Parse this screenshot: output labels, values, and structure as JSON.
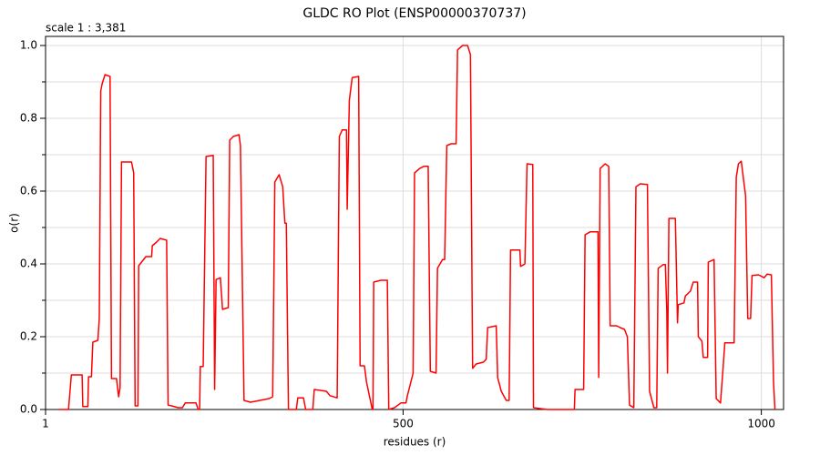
{
  "chart_data": {
    "type": "line",
    "title": "GLDC RO Plot (ENSP00000370737)",
    "annotation": "scale 1 : 3,381",
    "xlabel": "residues (r)",
    "ylabel": "o(r)",
    "color": "#ff0000",
    "grid": true,
    "xlim": [
      1,
      1031
    ],
    "ylim": [
      0,
      1.025
    ],
    "xticks": [
      1,
      500,
      1000
    ],
    "yticks": [
      {
        "value": 0,
        "label": "0.0"
      },
      0.2,
      0.4,
      0.6,
      0.8,
      {
        "value": 1,
        "label": "1.0"
      }
    ],
    "yminor": [
      0.1,
      0.3,
      0.5,
      0.7,
      0.9
    ],
    "x": [
      20,
      33,
      37,
      52,
      53,
      60,
      61,
      65,
      67,
      74,
      76,
      78,
      80,
      84,
      91,
      93,
      100,
      103,
      105,
      107,
      121,
      124,
      126,
      130,
      131,
      137,
      141,
      149,
      150,
      156,
      161,
      170,
      172,
      177,
      186,
      192,
      196,
      211,
      214,
      216,
      217,
      221,
      225,
      235,
      237,
      239,
      245,
      248,
      256,
      258,
      263,
      271,
      273,
      278,
      287,
      300,
      313,
      318,
      321,
      327,
      332,
      335,
      337,
      340,
      351,
      353,
      361,
      364,
      374,
      376,
      393,
      398,
      408,
      411,
      415,
      421,
      422,
      425,
      429,
      438,
      440,
      446,
      449,
      457,
      458,
      459,
      469,
      478,
      480,
      488,
      497,
      504,
      506,
      514,
      516,
      523,
      529,
      535,
      538,
      546,
      548,
      555,
      558,
      561,
      567,
      574,
      576,
      583,
      590,
      594,
      597,
      602,
      612,
      616,
      618,
      630,
      632,
      637,
      644,
      648,
      650,
      663,
      664,
      670,
      673,
      681,
      682,
      701,
      720,
      739,
      740,
      752,
      754,
      761,
      772,
      773,
      775,
      782,
      787,
      789,
      798,
      803,
      809,
      813,
      816,
      822,
      825,
      831,
      841,
      844,
      850,
      854,
      856,
      863,
      866,
      868,
      869,
      871,
      880,
      883,
      884,
      892,
      894,
      901,
      905,
      911,
      912,
      917,
      919,
      925,
      926,
      934,
      937,
      943,
      947,
      949,
      962,
      965,
      968,
      972,
      976,
      978,
      981,
      985,
      987,
      996,
      1004,
      1008,
      1014,
      1017,
      1019
    ],
    "values": [
      0,
      0,
      0.095,
      0.095,
      0.008,
      0.008,
      0.09,
      0.09,
      0.185,
      0.19,
      0.25,
      0.875,
      0.895,
      0.92,
      0.915,
      0.085,
      0.085,
      0.035,
      0.06,
      0.68,
      0.68,
      0.65,
      0.01,
      0.01,
      0.395,
      0.41,
      0.42,
      0.42,
      0.45,
      0.46,
      0.47,
      0.465,
      0.012,
      0.01,
      0.005,
      0.005,
      0.018,
      0.018,
      0,
      0,
      0.118,
      0.118,
      0.695,
      0.698,
      0.055,
      0.357,
      0.362,
      0.275,
      0.28,
      0.74,
      0.75,
      0.755,
      0.725,
      0.025,
      0.02,
      0.025,
      0.03,
      0.035,
      0.625,
      0.645,
      0.612,
      0.512,
      0.512,
      0,
      0,
      0.032,
      0.032,
      0,
      0,
      0.055,
      0.05,
      0.038,
      0.032,
      0.75,
      0.768,
      0.768,
      0.55,
      0.85,
      0.912,
      0.915,
      0.12,
      0.12,
      0.075,
      0,
      0,
      0.35,
      0.355,
      0.355,
      0,
      0.005,
      0.018,
      0.018,
      0.038,
      0.1,
      0.65,
      0.662,
      0.668,
      0.668,
      0.105,
      0.1,
      0.388,
      0.412,
      0.412,
      0.725,
      0.73,
      0.73,
      0.988,
      1,
      1,
      0.975,
      0.113,
      0.125,
      0.13,
      0.138,
      0.225,
      0.23,
      0.088,
      0.05,
      0.025,
      0.025,
      0.438,
      0.438,
      0.393,
      0.4,
      0.675,
      0.673,
      0.005,
      0,
      0,
      0,
      0.055,
      0.055,
      0.48,
      0.488,
      0.488,
      0.088,
      0.662,
      0.675,
      0.668,
      0.23,
      0.23,
      0.225,
      0.22,
      0.2,
      0.012,
      0.005,
      0.612,
      0.62,
      0.618,
      0.05,
      0.005,
      0.005,
      0.388,
      0.398,
      0.398,
      0.275,
      0.1,
      0.525,
      0.525,
      0.238,
      0.288,
      0.293,
      0.312,
      0.325,
      0.35,
      0.35,
      0.2,
      0.188,
      0.143,
      0.143,
      0.405,
      0.412,
      0.03,
      0.018,
      0.125,
      0.183,
      0.183,
      0.638,
      0.675,
      0.682,
      0.618,
      0.588,
      0.25,
      0.25,
      0.368,
      0.37,
      0.362,
      0.372,
      0.37,
      0.075,
      0
    ]
  }
}
